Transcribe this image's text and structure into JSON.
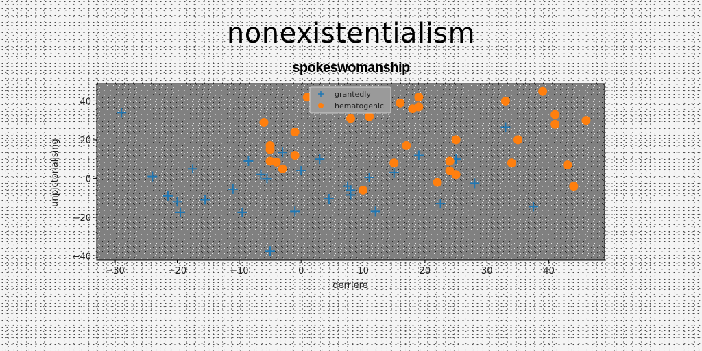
{
  "title": "nonexistentialism",
  "chart_data": {
    "type": "scatter",
    "title": "spokeswomanship",
    "xlabel": "derriere",
    "ylabel": "unpictorialising",
    "xlim": [
      -33,
      49
    ],
    "ylim": [
      -42,
      49
    ],
    "xticks": [
      -30,
      -20,
      -10,
      0,
      10,
      20,
      30,
      40
    ],
    "yticks": [
      -40,
      -20,
      0,
      20,
      40
    ],
    "xtick_labels": [
      "−30",
      "−20",
      "−10",
      "0",
      "10",
      "20",
      "30",
      "40"
    ],
    "ytick_labels": [
      "−40",
      "−20",
      "0",
      "20",
      "40"
    ],
    "grid": false,
    "legend_position": "top-center",
    "plot_background": "#808080",
    "series": [
      {
        "name": "grantedly",
        "marker": "plus",
        "color": "#1f77b4",
        "points": [
          [
            -29,
            34
          ],
          [
            -24,
            1
          ],
          [
            -21.5,
            -9
          ],
          [
            -20,
            -12
          ],
          [
            -19.5,
            -17.5
          ],
          [
            -17.5,
            5
          ],
          [
            -15.5,
            -11
          ],
          [
            -11,
            -5.5
          ],
          [
            -9.5,
            -17.5
          ],
          [
            -8.5,
            9
          ],
          [
            -6.5,
            2
          ],
          [
            -5.5,
            0
          ],
          [
            -5,
            -37.5
          ],
          [
            -3,
            13.5
          ],
          [
            -1,
            -17
          ],
          [
            0,
            4
          ],
          [
            3,
            10
          ],
          [
            4.5,
            -10.5
          ],
          [
            7.5,
            -4
          ],
          [
            8,
            -6
          ],
          [
            8,
            -8.5
          ],
          [
            11,
            0.5
          ],
          [
            12,
            -17
          ],
          [
            15,
            3
          ],
          [
            19,
            12
          ],
          [
            22.5,
            -13
          ],
          [
            25,
            10
          ],
          [
            28,
            -2.5
          ],
          [
            33,
            26.5
          ],
          [
            37.5,
            -14.5
          ]
        ]
      },
      {
        "name": "hematogenic",
        "marker": "circle",
        "color": "#ff7f0e",
        "points": [
          [
            -6,
            29
          ],
          [
            -5,
            17
          ],
          [
            -5,
            15
          ],
          [
            -5,
            9
          ],
          [
            -4,
            8.5
          ],
          [
            -3,
            5
          ],
          [
            -1,
            24
          ],
          [
            -1,
            12
          ],
          [
            1,
            42
          ],
          [
            8,
            31
          ],
          [
            10,
            -6
          ],
          [
            11,
            32
          ],
          [
            15,
            8
          ],
          [
            16,
            39
          ],
          [
            17,
            17
          ],
          [
            18,
            36
          ],
          [
            19,
            42
          ],
          [
            19,
            37
          ],
          [
            22,
            -2
          ],
          [
            24,
            9
          ],
          [
            24,
            4
          ],
          [
            25,
            2
          ],
          [
            25,
            20
          ],
          [
            33,
            40
          ],
          [
            34,
            8
          ],
          [
            35,
            20
          ],
          [
            39,
            45
          ],
          [
            41,
            33
          ],
          [
            41,
            28
          ],
          [
            43,
            7
          ],
          [
            44,
            -4
          ],
          [
            46,
            30
          ]
        ]
      }
    ]
  }
}
